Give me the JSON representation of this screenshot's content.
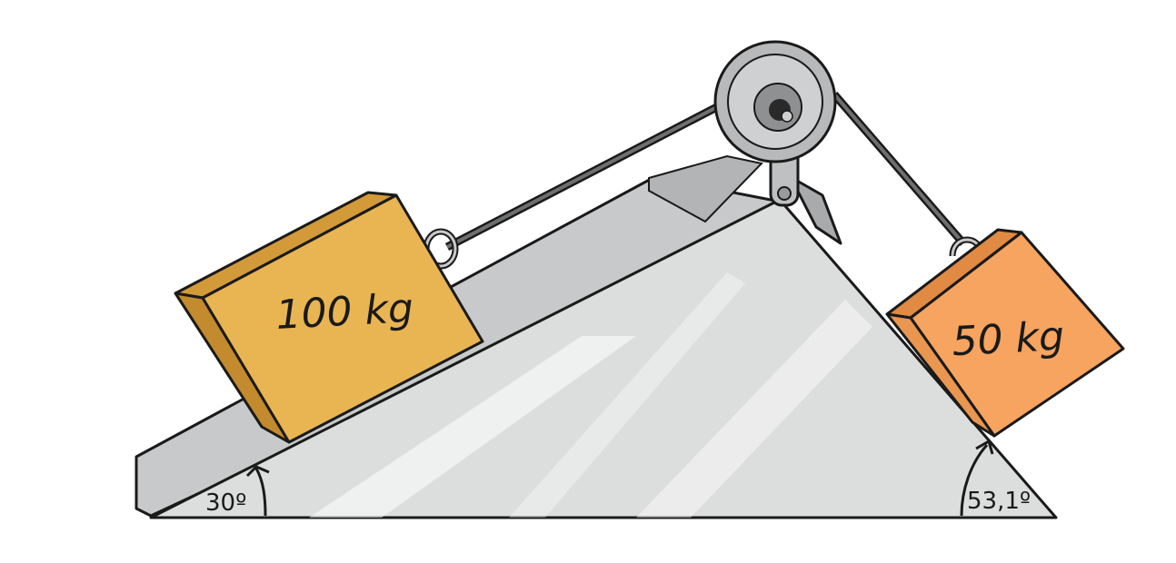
{
  "block_left": {
    "label": "100 kg",
    "color": "#e8b552"
  },
  "block_right": {
    "label": "50 kg",
    "color": "#f6a45f"
  },
  "angles": {
    "left": "30º",
    "right": "53,1º"
  },
  "colors": {
    "incline": "#d9dadb",
    "incline_back": "#c4c5c6",
    "outline": "#1a1a1a",
    "pulley": "#b8b9ba"
  }
}
